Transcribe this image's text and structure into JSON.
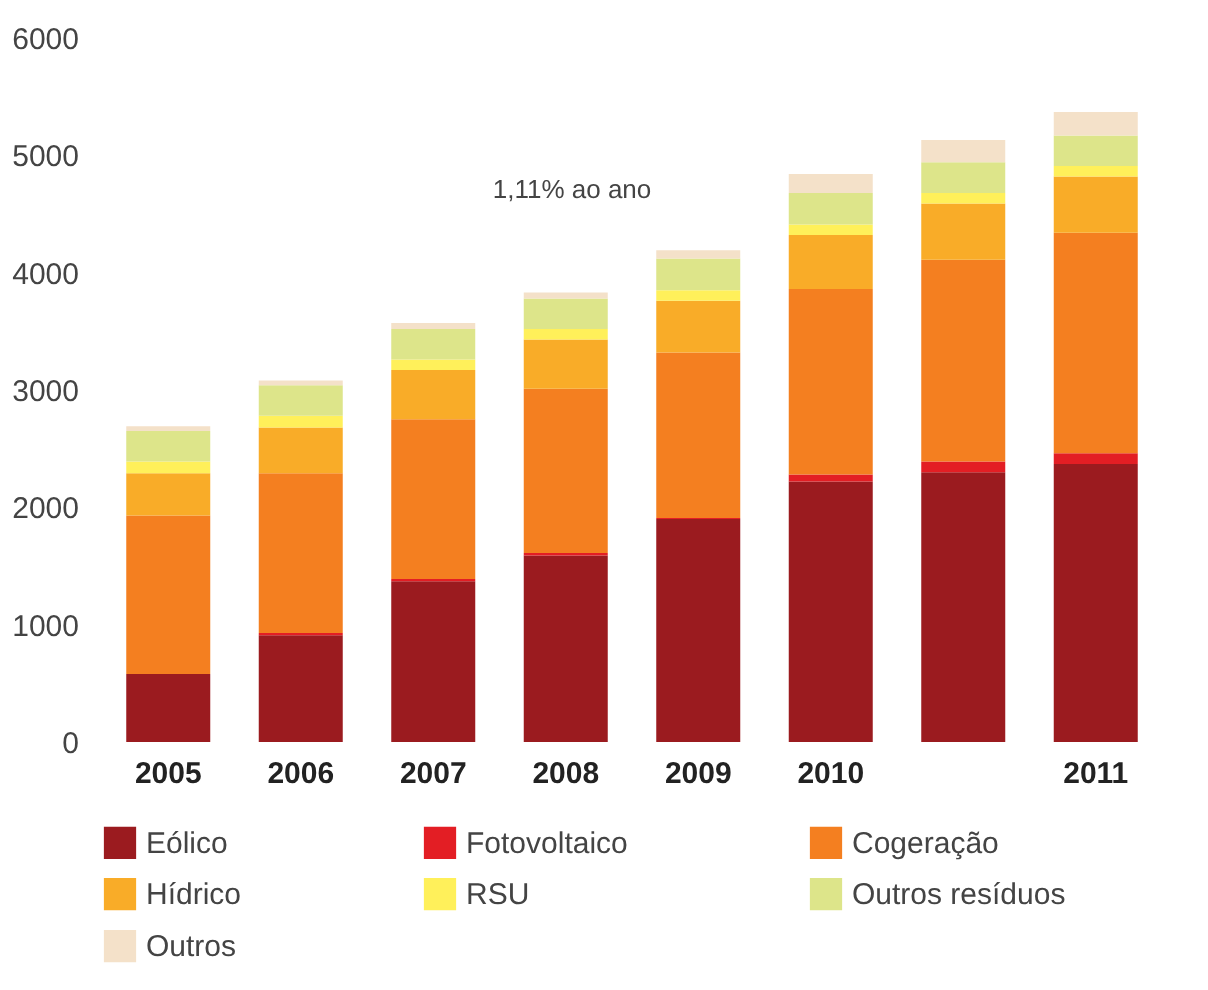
{
  "chart_data": {
    "type": "bar",
    "stacked": true,
    "categories": [
      "2005",
      "2006",
      "2007",
      "2008",
      "2009",
      "2010",
      null,
      "2011"
    ],
    "series": [
      {
        "name": "Eólico",
        "color": "#9b1b1f",
        "values": [
          580,
          910,
          1370,
          1590,
          1900,
          2220,
          2300,
          2370
        ]
      },
      {
        "name": "Fotovoltaico",
        "color": "#e31e24",
        "values": [
          0,
          20,
          20,
          20,
          10,
          60,
          90,
          90
        ]
      },
      {
        "name": "Cogeração",
        "color": "#f47f20",
        "values": [
          1350,
          1360,
          1360,
          1400,
          1410,
          1580,
          1720,
          1880
        ]
      },
      {
        "name": "Hídrico",
        "color": "#f9ac28",
        "values": [
          360,
          390,
          420,
          420,
          440,
          460,
          480,
          480
        ]
      },
      {
        "name": "RSU",
        "color": "#fff05a",
        "values": [
          100,
          100,
          90,
          90,
          90,
          90,
          90,
          90
        ]
      },
      {
        "name": "Outros resíduos",
        "color": "#dde58a",
        "values": [
          260,
          260,
          260,
          260,
          270,
          270,
          260,
          260
        ]
      },
      {
        "name": "Outros",
        "color": "#f4e1c9",
        "values": [
          40,
          40,
          50,
          50,
          70,
          160,
          190,
          200
        ]
      }
    ],
    "ylim": [
      0,
      6000
    ],
    "yticks": [
      0,
      1000,
      2000,
      3000,
      4000,
      5000,
      6000
    ],
    "grid": false,
    "legend": "bottom",
    "annotations": [
      "1,11% ao ano"
    ]
  }
}
